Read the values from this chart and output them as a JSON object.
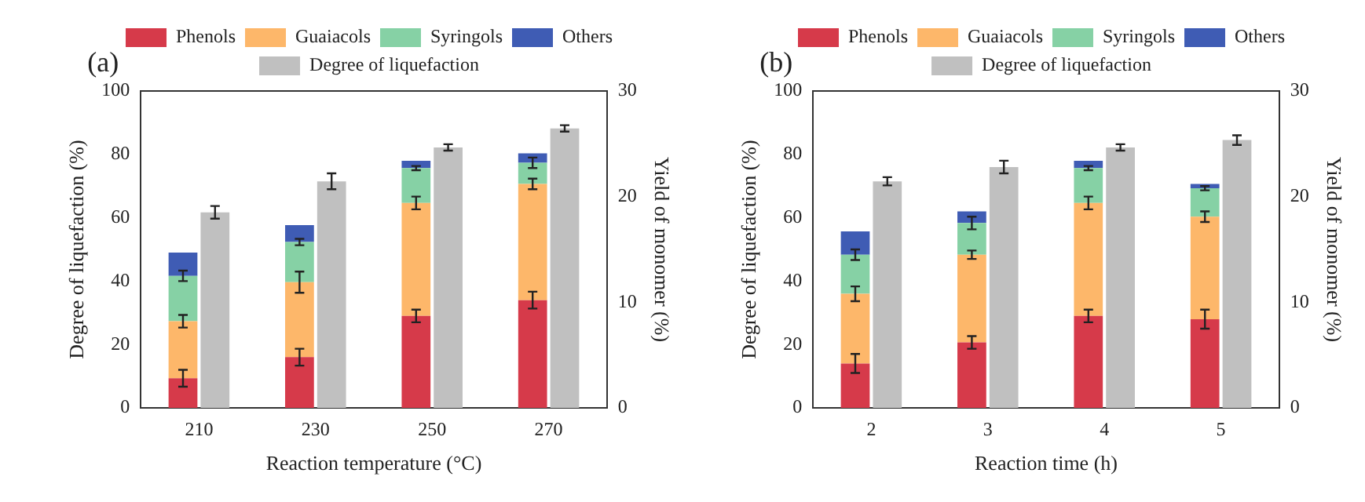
{
  "chart_data": [
    {
      "type": "bar",
      "annotations": [
        "(a)"
      ],
      "xlabel": "Reaction temperature (°C)",
      "ylabel": "Degree of liquefaction (%)",
      "y2label": "Yield of monomer (%)",
      "categories": [
        "210",
        "230",
        "250",
        "270"
      ],
      "stacked": true,
      "legend": "top",
      "grid": false,
      "ylim": [
        0,
        100
      ],
      "yticks": [
        0,
        20,
        40,
        60,
        80,
        100
      ],
      "y2lim": [
        0,
        30
      ],
      "y2ticks": [
        0,
        10,
        20,
        30
      ],
      "series": [
        {
          "name": "Phenols",
          "color": "#d63a4a",
          "axis": "y2",
          "values": [
            2.8,
            4.8,
            8.7,
            10.2
          ],
          "errors": [
            0.8,
            0.8,
            0.6,
            0.8
          ]
        },
        {
          "name": "Guaiacols",
          "color": "#fdb76a",
          "axis": "y2",
          "values": [
            5.4,
            7.1,
            10.7,
            11.0
          ],
          "errors": [
            0.6,
            1.0,
            0.6,
            0.5
          ]
        },
        {
          "name": "Syringols",
          "color": "#86d1a5",
          "axis": "y2",
          "values": [
            4.3,
            3.8,
            3.3,
            2.0
          ],
          "errors": [
            0.5,
            0.3,
            0.2,
            0.5
          ]
        },
        {
          "name": "Others",
          "color": "#3f5cb4",
          "axis": "y2",
          "values": [
            2.2,
            1.6,
            0.7,
            0.9
          ]
        },
        {
          "name": "Degree of liquefaction",
          "color": "#c0c0c0",
          "axis": "y",
          "values": [
            61.7,
            71.5,
            82.2,
            88.2
          ],
          "errors": [
            2,
            2.5,
            1,
            1
          ]
        }
      ]
    },
    {
      "type": "bar",
      "annotations": [
        "(b)"
      ],
      "xlabel": "Reaction time (h)",
      "ylabel": "Degree of liquefaction (%)",
      "y2label": "Yield of monomer (%)",
      "categories": [
        "2",
        "3",
        "4",
        "5"
      ],
      "stacked": true,
      "legend": "top",
      "grid": false,
      "ylim": [
        0,
        100
      ],
      "yticks": [
        0,
        20,
        40,
        60,
        80,
        100
      ],
      "y2lim": [
        0,
        30
      ],
      "y2ticks": [
        0,
        10,
        20,
        30
      ],
      "series": [
        {
          "name": "Phenols",
          "color": "#d63a4a",
          "axis": "y2",
          "values": [
            4.2,
            6.2,
            8.7,
            8.4
          ],
          "errors": [
            0.9,
            0.6,
            0.6,
            0.9
          ]
        },
        {
          "name": "Guaiacols",
          "color": "#fdb76a",
          "axis": "y2",
          "values": [
            6.6,
            8.3,
            10.7,
            9.7
          ],
          "errors": [
            0.7,
            0.4,
            0.6,
            0.5
          ]
        },
        {
          "name": "Syringols",
          "color": "#86d1a5",
          "axis": "y2",
          "values": [
            3.7,
            3.0,
            3.3,
            2.7
          ],
          "errors": [
            0.5,
            0.6,
            0.2,
            0.2
          ]
        },
        {
          "name": "Others",
          "color": "#3f5cb4",
          "axis": "y2",
          "values": [
            2.2,
            1.1,
            0.7,
            0.4
          ]
        },
        {
          "name": "Degree of liquefaction",
          "color": "#c0c0c0",
          "axis": "y",
          "values": [
            71.5,
            76,
            82.2,
            84.5
          ],
          "errors": [
            1.3,
            2,
            1,
            1.5
          ]
        }
      ]
    }
  ]
}
